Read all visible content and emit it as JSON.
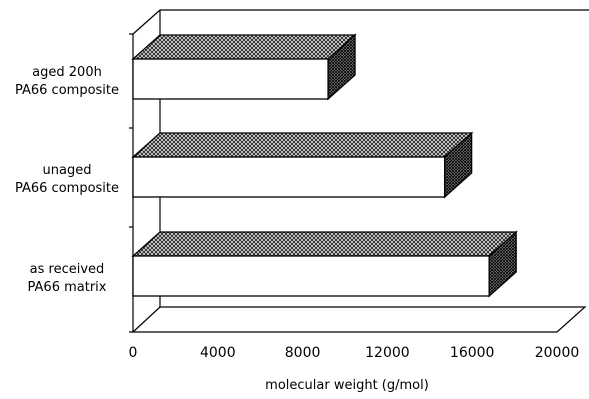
{
  "chart_data": {
    "type": "bar",
    "orientation": "horizontal",
    "style": "3d",
    "categories": [
      [
        "aged 200h",
        "PA66 composite"
      ],
      [
        "unaged",
        "PA66 composite"
      ],
      [
        "as received",
        "PA66 matrix"
      ]
    ],
    "values": [
      9200,
      14700,
      16800
    ],
    "xlabel": "molecular weight (g/mol)",
    "xlim": [
      0,
      20000
    ],
    "xticks": [
      "0",
      "4000",
      "8000",
      "12000",
      "16000",
      "20000"
    ],
    "grid": false,
    "legend": "none"
  }
}
